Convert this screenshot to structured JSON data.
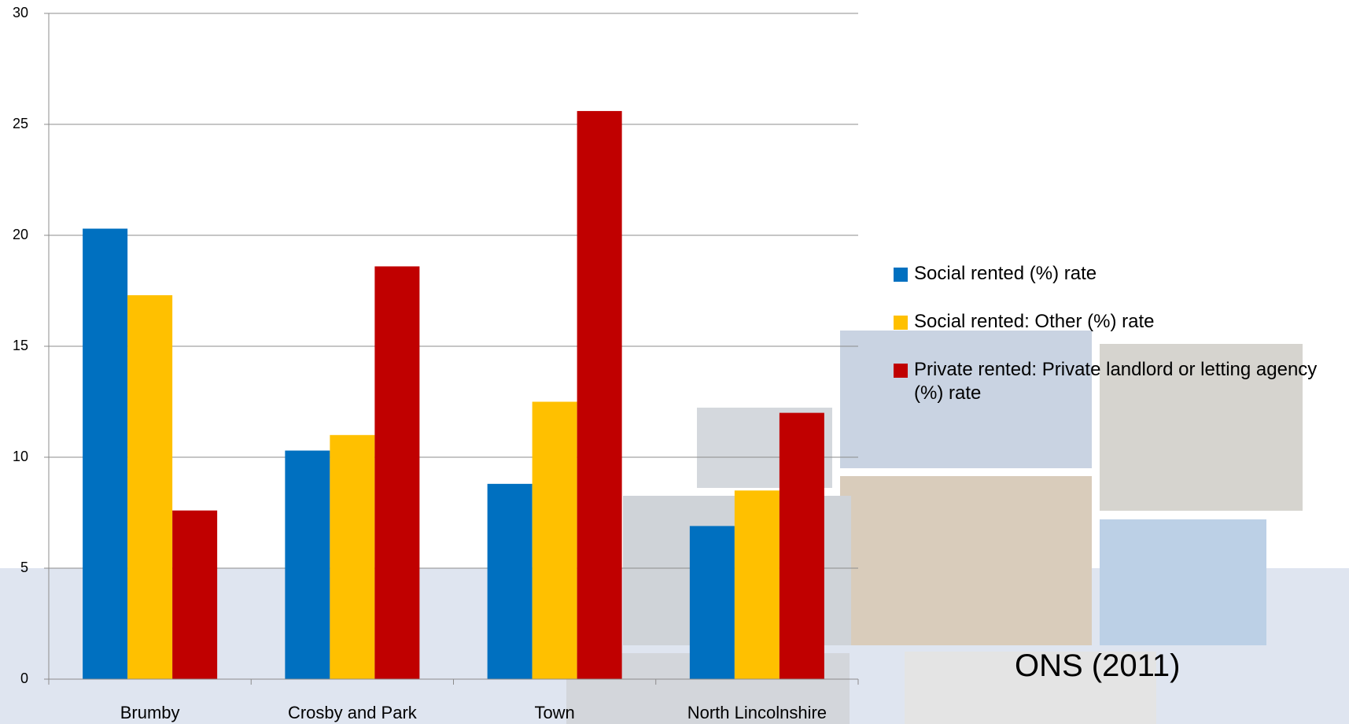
{
  "chart_data": {
    "type": "bar",
    "categories": [
      "Brumby",
      "Crosby and Park",
      "Town",
      "North Lincolnshire"
    ],
    "series": [
      {
        "name": "Social rented (%) rate",
        "color": "#0070c0",
        "values": [
          20.3,
          10.3,
          8.8,
          6.9
        ]
      },
      {
        "name": "Social rented: Other (%) rate",
        "color": "#ffc000",
        "values": [
          17.3,
          11.0,
          12.5,
          8.5
        ]
      },
      {
        "name": "Private rented: Private landlord or letting agency (%) rate",
        "color": "#c00000",
        "values": [
          7.6,
          18.6,
          25.6,
          12.0
        ]
      }
    ],
    "ylim": [
      0,
      30
    ],
    "yticks": [
      0,
      5,
      10,
      15,
      20,
      25,
      30
    ],
    "grid": true,
    "legend": "right",
    "annotation": "ONS (2011)"
  }
}
